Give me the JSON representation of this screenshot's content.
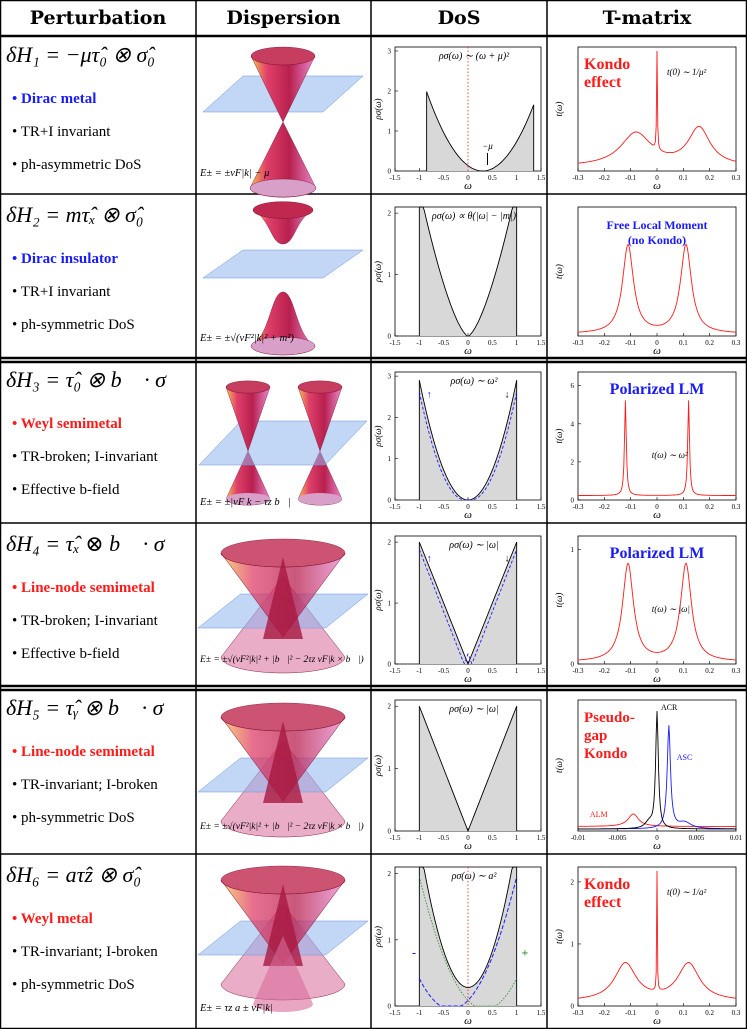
{
  "headers": [
    "Perturbation",
    "Dispersion",
    "DoS",
    "T-matrix"
  ],
  "rows": [
    {
      "equation": "δH₁ = −μτ̂₀ ⊗ σ̂₀",
      "class": "Dirac metal",
      "class_color": "#1a1aff",
      "props": [
        "TR+I invariant",
        "ph-asymmetric DoS"
      ],
      "dispersion_caption": "E± = ±vF|k| − μ",
      "dos_formula": "ρσ(ω) ∼ (ω + μ)²",
      "dos_note": "−μ",
      "dos_yticks": [
        "0",
        "1",
        "2",
        "3"
      ],
      "tmatrix_label": "Kondo\neffect",
      "tmatrix_note": "t(0) ∼ 1/μ²"
    },
    {
      "equation": "δH₂ = mτ̂ₓ ⊗ σ̂₀",
      "class": "Dirac insulator",
      "class_color": "#1a1aff",
      "props": [
        "TR+I invariant",
        "ph-symmetric DoS"
      ],
      "dispersion_caption": "E± = ±√(vF²|k|² + m²)",
      "dos_formula": "ρσ(ω) ∝ θ(|ω| − |m|)",
      "dos_yticks": [
        "0",
        "1",
        "2"
      ],
      "tmatrix_label": "Free Local Moment\n(no Kondo)"
    },
    {
      "equation": "δH₃ = τ̂₀ ⊗ b⃗ · σ⃗",
      "class": "Weyl semimetal",
      "class_color": "#ff1a1a",
      "props": [
        "TR-broken; I-invariant",
        "Effective b-field"
      ],
      "dispersion_caption": "E± = ±|vF k − τz b⃗|",
      "dos_formula": "ρσ(ω) ∼ ω²",
      "dos_yticks": [
        "0",
        "1",
        "2",
        "3"
      ],
      "tmatrix_label": "Polarized LM",
      "tmatrix_note": "t(ω) ∼ ω²",
      "tmatrix_yticks": [
        "0",
        "2",
        "4",
        "6"
      ]
    },
    {
      "equation": "δH₄ = τ̂ₓ ⊗ b⃗ · σ⃗",
      "class": "Line-node semimetal",
      "class_color": "#ff1a1a",
      "props": [
        "TR-broken; I-invariant",
        "Effective b-field"
      ],
      "dispersion_caption": "E± = ±√(vF²|k|² + |b⃗|² − 2τz vF|k × b⃗|)",
      "dos_formula": "ρσ(ω) ∼ |ω|",
      "dos_yticks": [
        "0",
        "1",
        "2"
      ],
      "tmatrix_label": "Polarized LM",
      "tmatrix_note": "t(ω) ∼ |ω|",
      "tmatrix_yticks": [
        "0",
        "1"
      ]
    },
    {
      "equation": "δH₅ = τ̂ᵧ ⊗ b⃗ · σ⃗",
      "class": "Line-node semimetal",
      "class_color": "#ff1a1a",
      "props": [
        "TR-invariant; I-broken",
        "ph-symmetric DoS"
      ],
      "dispersion_caption": "E± = ±√(vF²|k|² + |b⃗|² − 2τz vF|k × b⃗|)",
      "dos_formula": "ρσ(ω) ∼ |ω|",
      "dos_yticks": [
        "0",
        "1",
        "2"
      ],
      "tmatrix_label": "Pseudo-\ngap\nKondo",
      "tmatrix_series": [
        "ACR",
        "ASC",
        "ALM"
      ],
      "tmatrix_xticks": [
        "-0.01",
        "-0.005",
        "0",
        "0.005",
        "0.01"
      ]
    },
    {
      "equation": "δH₆ = aτ̂z ⊗ σ̂₀",
      "class": "Weyl metal",
      "class_color": "#ff1a1a",
      "props": [
        "TR-invariant; I-broken",
        "ph-symmetric DoS"
      ],
      "dispersion_caption": "E± = τz a ± vF|k|",
      "dos_formula": "ρσ(ω) ∼ a²",
      "dos_markers": [
        "-",
        "+"
      ],
      "dos_yticks": [
        "0",
        "1",
        "2"
      ],
      "tmatrix_label": "Kondo\neffect",
      "tmatrix_note": "t(0) ∼ 1/a²",
      "tmatrix_yticks": [
        "0",
        "1",
        "2"
      ]
    }
  ],
  "axes": {
    "dos_xticks": [
      "-1.5",
      "-1",
      "-0.5",
      "0",
      "0.5",
      "1",
      "1.5"
    ],
    "tm_xticks": [
      "-0.3",
      "-0.2",
      "-0.1",
      "0",
      "0.1",
      "0.2",
      "0.3"
    ],
    "omega": "ω",
    "dos_ylabel": "ρσ(ω)",
    "tm_ylabel": "t(ω)"
  },
  "colors": {
    "blue": "#1a1aff",
    "red": "#ff1a1a",
    "shade": "#d8d8d8",
    "plane": "#8fb4ef",
    "cone": "#d63060"
  }
}
